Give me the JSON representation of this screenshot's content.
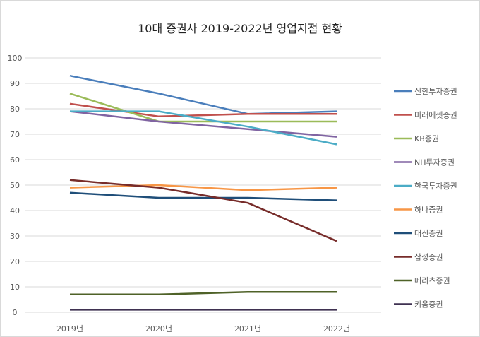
{
  "chart_data": {
    "type": "line",
    "title": "10대 증권사 2019-2022년 영업지점 현황",
    "xlabel": "",
    "ylabel": "",
    "x": [
      "2019년",
      "2020년",
      "2021년",
      "2022년"
    ],
    "ylim": [
      0,
      100
    ],
    "yticks": [
      0,
      10,
      20,
      30,
      40,
      50,
      60,
      70,
      80,
      90,
      100
    ],
    "grid": true,
    "legend_position": "right",
    "series": [
      {
        "name": "신한투자증권",
        "color": "#4a7ebb",
        "values": [
          93,
          86,
          78,
          79
        ]
      },
      {
        "name": "미래에셋증권",
        "color": "#c0504d",
        "values": [
          82,
          77,
          78,
          78
        ]
      },
      {
        "name": "KB증권",
        "color": "#9bbb59",
        "values": [
          86,
          75,
          75,
          75
        ]
      },
      {
        "name": "NH투자증권",
        "color": "#8064a2",
        "values": [
          79,
          75,
          72,
          69
        ]
      },
      {
        "name": "한국투자증권",
        "color": "#4bacc6",
        "values": [
          79,
          79,
          73,
          66
        ]
      },
      {
        "name": "하나증권",
        "color": "#f79646",
        "values": [
          49,
          50,
          48,
          49
        ]
      },
      {
        "name": "대신증권",
        "color": "#1f4e79",
        "values": [
          47,
          45,
          45,
          44
        ]
      },
      {
        "name": "삼성증권",
        "color": "#772c2a",
        "values": [
          52,
          49,
          43,
          28
        ]
      },
      {
        "name": "메리츠증권",
        "color": "#4f6228",
        "values": [
          7,
          7,
          8,
          8
        ]
      },
      {
        "name": "키움증권",
        "color": "#3f3151",
        "values": [
          1,
          1,
          1,
          1
        ]
      }
    ]
  }
}
